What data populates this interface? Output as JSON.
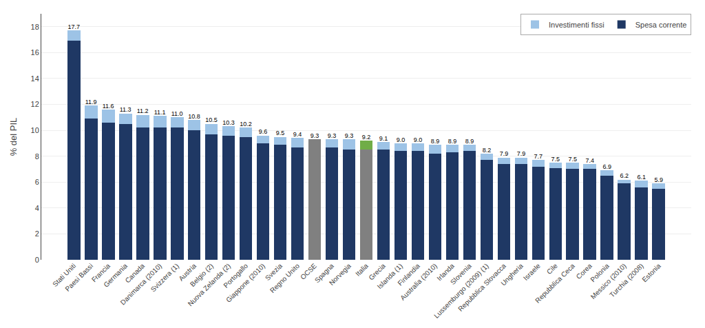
{
  "chart_data": {
    "type": "bar",
    "stacked": true,
    "categories": [
      "Stati Uniti",
      "Paesi Bassi",
      "Francia",
      "Germania",
      "Canada",
      "Danimarca (2010)",
      "Svizzera (1)",
      "Austria",
      "Belgio (2)",
      "Nuova Zelanda (2)",
      "Portogallo",
      "Giappone (2010)",
      "Svezia",
      "Regno Unito",
      "OCSE",
      "Spagna",
      "Norvegia",
      "Italia",
      "Grecia",
      "Islanda (1)",
      "Finlandia",
      "Australia (2010)",
      "Irlanda",
      "Slovenia",
      "Lussemburgo (2009) (1)",
      "Repubblica Slovacca",
      "Ungheria",
      "Israele",
      "Cile",
      "Repubblica Ceca",
      "Corea",
      "Polonia",
      "Messico (2010)",
      "Turchia (2008)",
      "Estonia"
    ],
    "series": [
      {
        "name": "Spesa corrente",
        "color": "#1F3864",
        "values": [
          16.9,
          10.9,
          10.6,
          10.5,
          10.2,
          10.2,
          10.2,
          10.0,
          9.7,
          9.6,
          9.5,
          9.0,
          8.9,
          8.7,
          9.3,
          8.7,
          8.5,
          8.5,
          8.5,
          8.4,
          8.4,
          8.2,
          8.3,
          8.4,
          7.7,
          7.4,
          7.4,
          7.2,
          7.1,
          7.0,
          7.0,
          6.5,
          5.9,
          5.6,
          5.5
        ],
        "colors": [
          "#1F3864",
          "#1F3864",
          "#1F3864",
          "#1F3864",
          "#1F3864",
          "#1F3864",
          "#1F3864",
          "#1F3864",
          "#1F3864",
          "#1F3864",
          "#1F3864",
          "#1F3864",
          "#1F3864",
          "#1F3864",
          "#808080",
          "#1F3864",
          "#1F3864",
          "#808080",
          "#1F3864",
          "#1F3864",
          "#1F3864",
          "#1F3864",
          "#1F3864",
          "#1F3864",
          "#1F3864",
          "#1F3864",
          "#1F3864",
          "#1F3864",
          "#1F3864",
          "#1F3864",
          "#1F3864",
          "#1F3864",
          "#1F3864",
          "#1F3864",
          "#1F3864"
        ]
      },
      {
        "name": "Investimenti fissi",
        "color": "#9DC3E6",
        "values": [
          0.8,
          1.0,
          1.0,
          0.8,
          1.0,
          0.9,
          0.8,
          0.8,
          0.8,
          0.7,
          0.7,
          0.6,
          0.6,
          0.7,
          0.0,
          0.6,
          0.8,
          0.7,
          0.6,
          0.6,
          0.6,
          0.7,
          0.6,
          0.5,
          0.5,
          0.5,
          0.5,
          0.5,
          0.4,
          0.5,
          0.4,
          0.4,
          0.3,
          0.5,
          0.4
        ],
        "colors": [
          "#9DC3E6",
          "#9DC3E6",
          "#9DC3E6",
          "#9DC3E6",
          "#9DC3E6",
          "#9DC3E6",
          "#9DC3E6",
          "#9DC3E6",
          "#9DC3E6",
          "#9DC3E6",
          "#9DC3E6",
          "#9DC3E6",
          "#9DC3E6",
          "#9DC3E6",
          "#70AD47",
          "#9DC3E6",
          "#9DC3E6",
          "#70AD47",
          "#9DC3E6",
          "#9DC3E6",
          "#9DC3E6",
          "#9DC3E6",
          "#9DC3E6",
          "#9DC3E6",
          "#9DC3E6",
          "#9DC3E6",
          "#9DC3E6",
          "#9DC3E6",
          "#9DC3E6",
          "#9DC3E6",
          "#9DC3E6",
          "#9DC3E6",
          "#9DC3E6",
          "#9DC3E6",
          "#9DC3E6"
        ]
      }
    ],
    "data_labels": true,
    "totals": [
      17.7,
      11.9,
      11.6,
      11.3,
      11.2,
      11.1,
      11.0,
      10.8,
      10.5,
      10.3,
      10.2,
      9.6,
      9.5,
      9.4,
      9.3,
      9.3,
      9.3,
      9.2,
      9.1,
      9.0,
      9.0,
      8.9,
      8.9,
      8.9,
      8.2,
      7.9,
      7.9,
      7.7,
      7.5,
      7.5,
      7.4,
      6.9,
      6.2,
      6.1,
      5.9
    ],
    "value_labels": [
      "17.7",
      "11.9",
      "11.6",
      "11.3",
      "11.2",
      "11.1",
      "11.0",
      "10.8",
      "10.5",
      "10.3",
      "10.2",
      "9.6",
      "9.5",
      "9.4",
      "9.3",
      "9.3",
      "9.3",
      "9.2",
      "9.1",
      "9.0",
      "9.0",
      "8.9",
      "8.9",
      "8.9",
      "8.2",
      "7.9",
      "7.9",
      "7.7",
      "7.5",
      "7.5",
      "7.4",
      "6.9",
      "6.2",
      "6.1",
      "5.9"
    ],
    "y_label": "% del PIL",
    "ylim": [
      0,
      19
    ],
    "yticks": [
      0,
      2,
      4,
      6,
      8,
      10,
      12,
      14,
      16,
      18
    ],
    "grid": true,
    "legend": "upper right"
  }
}
